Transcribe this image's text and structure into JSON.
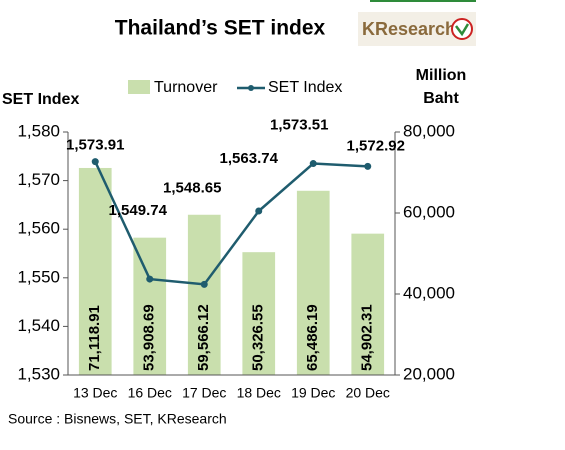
{
  "chart_data": {
    "type": "bar-line",
    "title": "Thailand’s SET index",
    "logo": "KResearch",
    "ylabel": "SET Index",
    "y2label": [
      "Million",
      "Baht"
    ],
    "source": "Source : Bisnews, SET, KResearch",
    "categories": [
      "13 Dec",
      "16 Dec",
      "17 Dec",
      "18 Dec",
      "19 Dec",
      "20 Dec"
    ],
    "series": [
      {
        "name": "Turnover",
        "color": "#c9dfad",
        "axis": "y2",
        "values": [
          71118.91,
          53908.69,
          59566.12,
          50326.55,
          65486.19,
          54902.31
        ],
        "value_labels": [
          "71,118.91",
          "53,908.69",
          "59,566.12",
          "50,326.55",
          "65,486.19",
          "54,902.31"
        ]
      },
      {
        "name": "SET Index",
        "color": "#1f5c6e",
        "axis": "y",
        "values": [
          1573.91,
          1549.74,
          1548.65,
          1563.74,
          1573.51,
          1572.92
        ],
        "value_labels": [
          "1,573.91",
          "1,549.74",
          "1,548.65",
          "1,563.74",
          "1,573.51",
          "1,572.92"
        ]
      }
    ],
    "ylim": [
      1530,
      1580
    ],
    "yticks": [
      {
        "value": 1530,
        "label": "1,530"
      },
      {
        "value": 1540,
        "label": "1,540"
      },
      {
        "value": 1550,
        "label": "1,550"
      },
      {
        "value": 1560,
        "label": "1,560"
      },
      {
        "value": 1570,
        "label": "1,570"
      },
      {
        "value": 1580,
        "label": "1,580"
      }
    ],
    "y2lim": [
      20000,
      80000
    ],
    "y2ticks": [
      {
        "value": 20000,
        "label": "20,000"
      },
      {
        "value": 40000,
        "label": "40,000"
      },
      {
        "value": 60000,
        "label": "60,000"
      },
      {
        "value": 80000,
        "label": "80,000"
      }
    ]
  }
}
